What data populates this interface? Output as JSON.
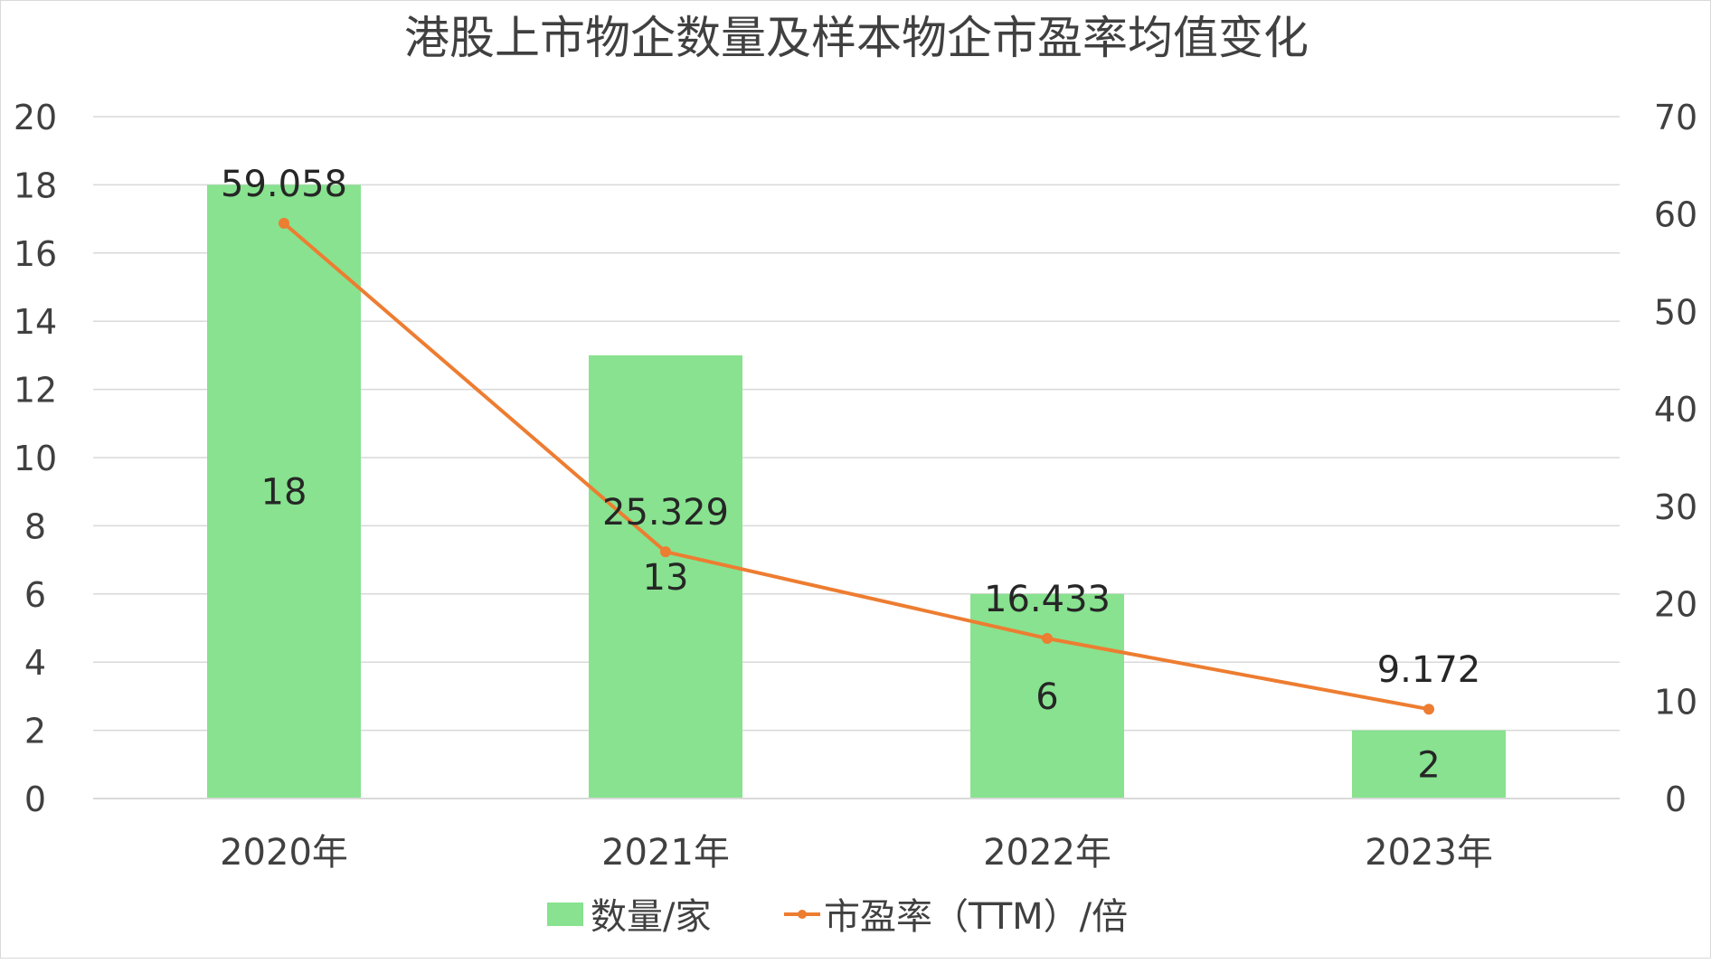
{
  "chart_data": {
    "type": "bar+line",
    "title": "港股上市物企数量及样本物企市盈率均值变化",
    "categories": [
      "2020年",
      "2021年",
      "2022年",
      "2023年"
    ],
    "series": [
      {
        "name": "数量/家",
        "type": "bar",
        "axis": "left",
        "values": [
          18,
          13,
          6,
          2
        ],
        "labels": [
          "18",
          "13",
          "6",
          "2"
        ],
        "color": "#88e28f"
      },
      {
        "name": "市盈率（TTM）/倍",
        "type": "line",
        "axis": "right",
        "values": [
          59.058,
          25.329,
          16.433,
          9.172
        ],
        "labels": [
          "59.058",
          "25.329",
          "16.433",
          "9.172"
        ],
        "color": "#ed7d31"
      }
    ],
    "y_left": {
      "min": 0,
      "max": 20,
      "ticks": [
        "0",
        "2",
        "4",
        "6",
        "8",
        "10",
        "12",
        "14",
        "16",
        "18",
        "20"
      ]
    },
    "y_right": {
      "min": 0,
      "max": 70,
      "ticks": [
        "0",
        "10",
        "20",
        "30",
        "40",
        "50",
        "60",
        "70"
      ]
    },
    "grid": true,
    "legend": "bottom"
  }
}
